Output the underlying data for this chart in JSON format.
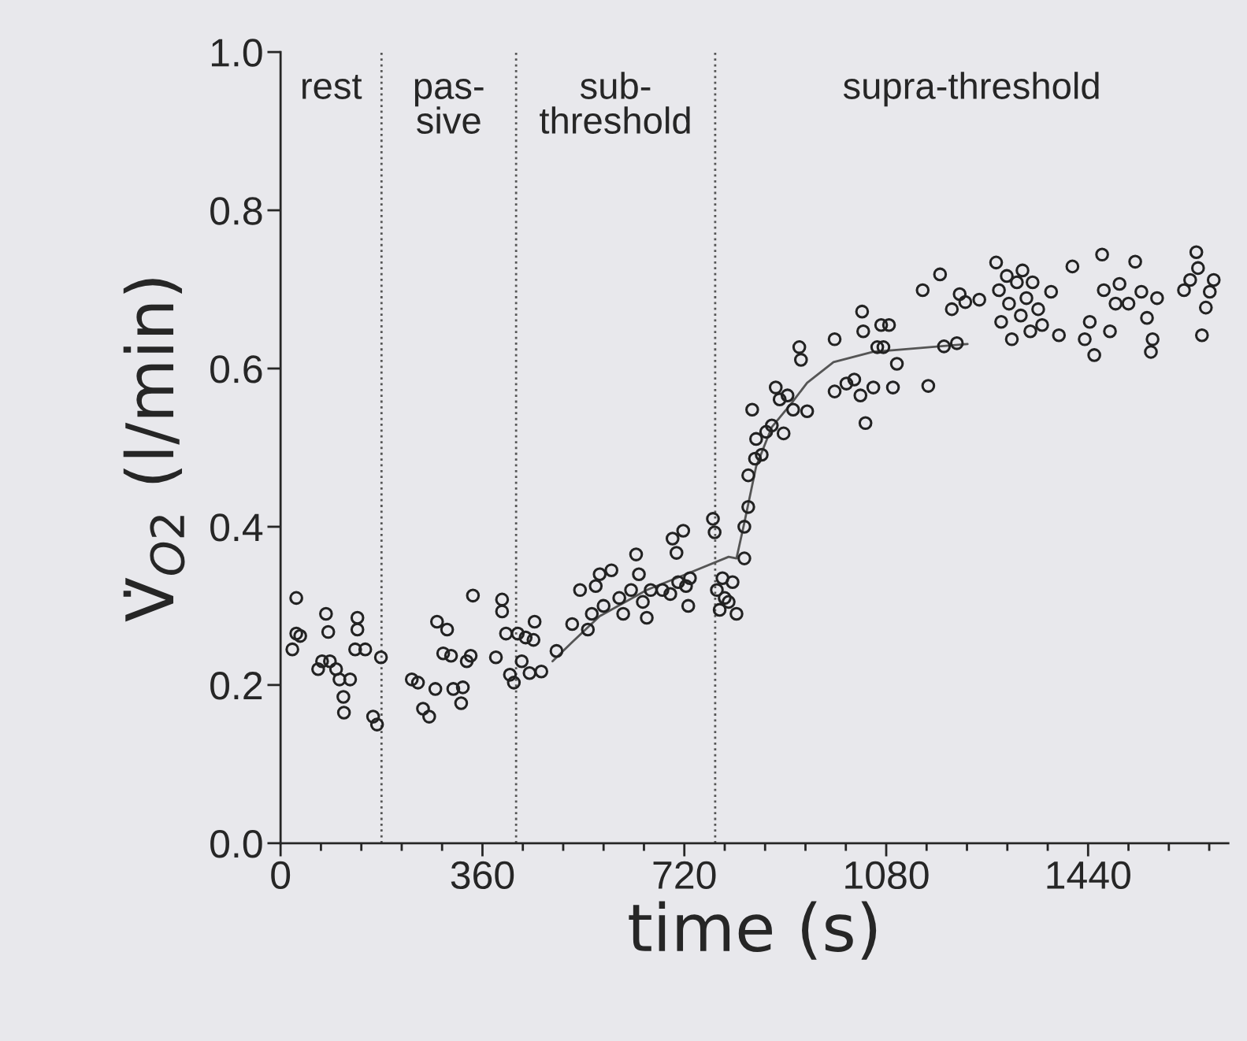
{
  "chart_data": {
    "type": "scatter",
    "xlabel": "time (s)",
    "ylabel": "V̇$_{O2}$ (l/min)",
    "xlim": [
      0,
      1690
    ],
    "ylim": [
      0,
      1.0
    ],
    "xticks": [
      0,
      360,
      720,
      1080,
      1440
    ],
    "yticks": [
      {
        "value": 0,
        "label": "0.0"
      },
      {
        "value": 0.2,
        "label": "0.2"
      },
      {
        "value": 0.4,
        "label": "0.4"
      },
      {
        "value": 0.6,
        "label": "0.6"
      },
      {
        "value": 0.8,
        "label": "0.8"
      },
      {
        "value": 1.0,
        "label": "1.0"
      }
    ],
    "grid": false,
    "marker": "circle",
    "ref_lines": [
      {
        "axis": "x",
        "value": 180,
        "line_style": "dotted",
        "color": "#555555"
      },
      {
        "axis": "x",
        "value": 420,
        "line_style": "dotted",
        "color": "#555555"
      },
      {
        "axis": "x",
        "value": 775,
        "line_style": "dotted",
        "color": "#555555"
      }
    ],
    "annotations": [
      "rest",
      "pas-\nsive",
      "sub-\nthreshold",
      "supra-threshold"
    ],
    "series": [
      {
        "color": "#222222",
        "x": [
          28,
          28,
          21,
          35,
          67,
          81,
          85,
          88,
          99,
          105,
          112,
          113,
          124,
          137,
          137,
          133,
          151,
          165,
          172,
          179,
          74,
          234,
          245,
          254,
          265,
          276,
          279,
          297,
          290,
          304,
          308,
          322,
          325,
          332,
          339,
          343,
          384,
          395,
          395,
          402,
          409,
          416,
          423,
          430,
          437,
          444,
          453,
          451,
          465,
          492,
          520,
          534,
          548,
          555,
          562,
          569,
          576,
          590,
          604,
          611,
          625,
          634,
          639,
          646,
          653,
          660,
          681,
          695,
          699,
          706,
          709,
          718,
          723,
          727,
          730,
          771,
          774,
          778,
          783,
          788,
          792,
          799,
          806,
          813,
          827,
          827,
          834,
          834,
          841,
          846,
          848,
          858,
          866,
          876,
          883,
          890,
          897,
          904,
          914,
          925,
          928,
          939,
          988,
          988,
          1009,
          1023,
          1034,
          1037,
          1039,
          1043,
          1057,
          1064,
          1071,
          1075,
          1085,
          1092,
          1099,
          1155,
          1145,
          1176,
          1183,
          1197,
          1206,
          1211,
          1221,
          1246,
          1276,
          1281,
          1285,
          1295,
          1299,
          1304,
          1313,
          1320,
          1323,
          1330,
          1337,
          1341,
          1351,
          1358,
          1374,
          1388,
          1412,
          1434,
          1443,
          1451,
          1465,
          1468,
          1479,
          1489,
          1496,
          1512,
          1524,
          1535,
          1545,
          1552,
          1555,
          1563,
          1611,
          1622,
          1633,
          1636,
          1643,
          1650,
          1664,
          1657
        ],
        "values": [
          0.31,
          0.265,
          0.245,
          0.262,
          0.22,
          0.29,
          0.267,
          0.23,
          0.22,
          0.207,
          0.185,
          0.165,
          0.207,
          0.285,
          0.27,
          0.245,
          0.245,
          0.16,
          0.15,
          0.235,
          0.23,
          0.207,
          0.203,
          0.17,
          0.16,
          0.195,
          0.28,
          0.27,
          0.24,
          0.237,
          0.195,
          0.177,
          0.197,
          0.23,
          0.237,
          0.313,
          0.235,
          0.308,
          0.293,
          0.265,
          0.213,
          0.203,
          0.265,
          0.23,
          0.26,
          0.215,
          0.28,
          0.257,
          0.217,
          0.243,
          0.277,
          0.32,
          0.27,
          0.29,
          0.325,
          0.34,
          0.3,
          0.345,
          0.31,
          0.29,
          0.32,
          0.365,
          0.34,
          0.305,
          0.285,
          0.32,
          0.32,
          0.315,
          0.385,
          0.367,
          0.33,
          0.395,
          0.325,
          0.3,
          0.335,
          0.41,
          0.393,
          0.32,
          0.295,
          0.335,
          0.31,
          0.305,
          0.33,
          0.29,
          0.36,
          0.4,
          0.425,
          0.465,
          0.548,
          0.486,
          0.511,
          0.491,
          0.52,
          0.528,
          0.576,
          0.561,
          0.518,
          0.566,
          0.548,
          0.627,
          0.611,
          0.546,
          0.571,
          0.637,
          0.581,
          0.586,
          0.566,
          0.672,
          0.647,
          0.531,
          0.576,
          0.627,
          0.655,
          0.627,
          0.655,
          0.576,
          0.606,
          0.578,
          0.699,
          0.719,
          0.628,
          0.675,
          0.632,
          0.694,
          0.684,
          0.687,
          0.734,
          0.699,
          0.659,
          0.717,
          0.682,
          0.637,
          0.709,
          0.667,
          0.724,
          0.689,
          0.647,
          0.709,
          0.675,
          0.655,
          0.697,
          0.642,
          0.729,
          0.637,
          0.659,
          0.617,
          0.744,
          0.699,
          0.647,
          0.682,
          0.707,
          0.682,
          0.735,
          0.697,
          0.664,
          0.621,
          0.637,
          0.689,
          0.699,
          0.712,
          0.747,
          0.727,
          0.642,
          0.677,
          0.712,
          0.697
        ]
      },
      {
        "type": "line",
        "marker": "none",
        "color": "#555555",
        "x": [
          485,
          520,
          569,
          653,
          723,
          799,
          813,
          827,
          848,
          876,
          911,
          939,
          986,
          1056,
          1141,
          1225
        ],
        "values": [
          0.23,
          0.254,
          0.287,
          0.32,
          0.34,
          0.362,
          0.36,
          0.405,
          0.476,
          0.526,
          0.556,
          0.582,
          0.608,
          0.621,
          0.626,
          0.631
        ]
      }
    ]
  }
}
